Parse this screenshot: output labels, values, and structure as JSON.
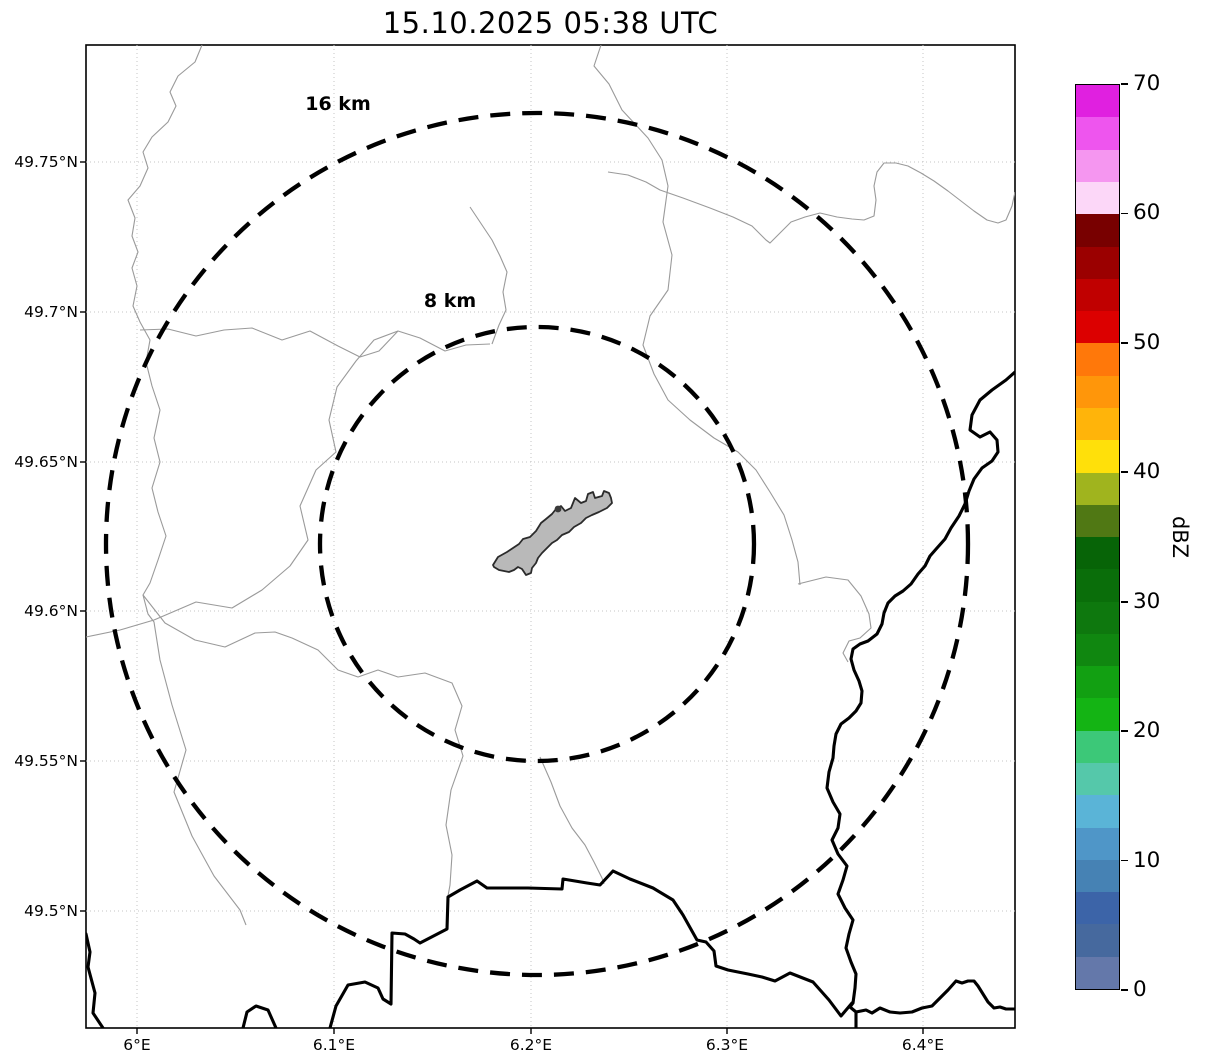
{
  "title": "15.10.2025 05:38 UTC",
  "map": {
    "x_tick_labels": [
      "6°E",
      "6.1°E",
      "6.2°E",
      "6.3°E",
      "6.4°E"
    ],
    "y_tick_labels": [
      "49.75°N",
      "49.7°N",
      "49.65°N",
      "49.6°N",
      "49.55°N",
      "49.5°N"
    ],
    "range_rings": [
      {
        "label": "16 km",
        "radius_km": 16
      },
      {
        "label": "8 km",
        "radius_km": 8
      }
    ]
  },
  "colorbar": {
    "label": "dBZ",
    "min": 0,
    "max": 70,
    "ticks": [
      0,
      10,
      20,
      30,
      40,
      50,
      60,
      70
    ],
    "segment_step": 2.5,
    "segments_bottom_to_top": [
      "#6478aa",
      "#46699e",
      "#3c64a8",
      "#4682b4",
      "#4f96c8",
      "#5ab4d7",
      "#55c8aa",
      "#3cc878",
      "#14b414",
      "#12a012",
      "#108710",
      "#0e780e",
      "#0a6e0a",
      "#076407",
      "#507814",
      "#a0b41e",
      "#ffe00a",
      "#ffb40a",
      "#ff960a",
      "#ff780a",
      "#dc0000",
      "#c00000",
      "#9b0000",
      "#780000",
      "#fcd7f8",
      "#f596f0",
      "#ee55ee",
      "#e020e0"
    ]
  },
  "chart_data": {
    "type": "map",
    "title": "15.10.2025 05:38 UTC",
    "x_axis": {
      "tick_labels": [
        "6°E",
        "6.1°E",
        "6.2°E",
        "6.3°E",
        "6.4°E"
      ]
    },
    "y_axis": {
      "tick_labels": [
        "49.75°N",
        "49.7°N",
        "49.65°N",
        "49.6°N",
        "49.55°N",
        "49.5°N"
      ]
    },
    "range_rings_km": [
      8,
      16
    ],
    "colorbar": {
      "label": "dBZ",
      "min": 0,
      "max": 70,
      "ticks": [
        0,
        10,
        20,
        30,
        40,
        50,
        60,
        70
      ],
      "segment_step_dbz": 2.5
    },
    "radar_echoes_plotted": "none visible"
  }
}
